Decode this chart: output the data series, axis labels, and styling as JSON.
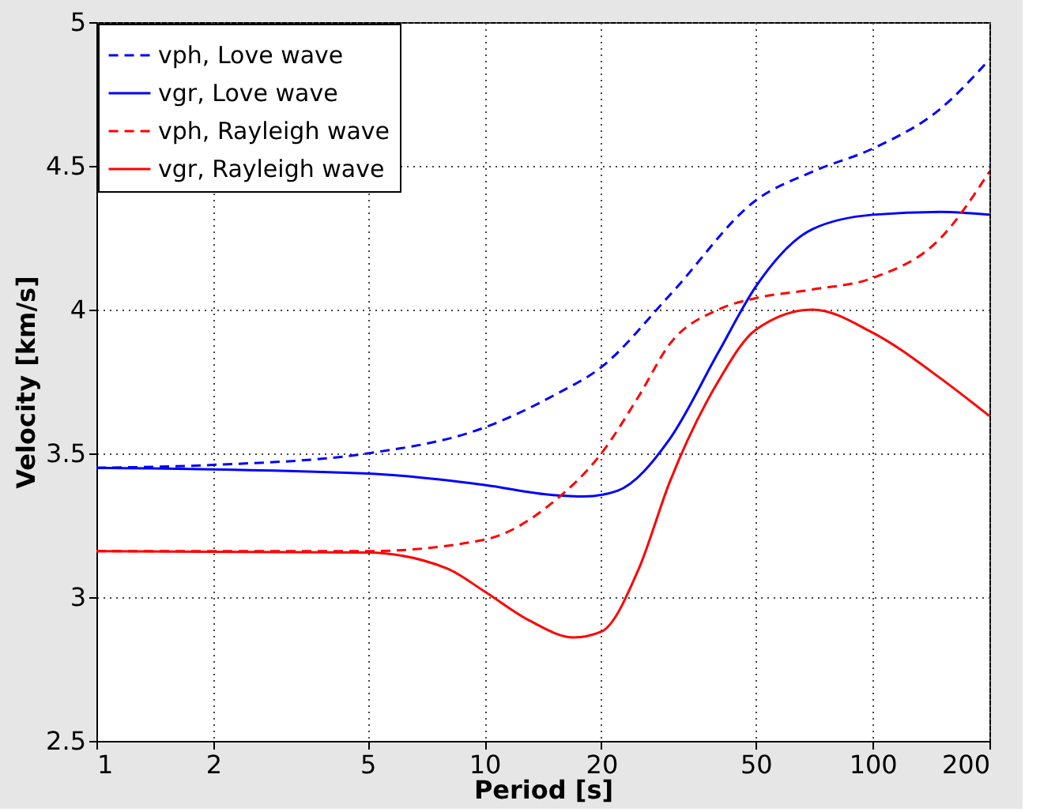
{
  "chart_data": {
    "type": "line",
    "xlabel": "Period [s]",
    "ylabel": "Velocity [km/s]",
    "log": "x",
    "xlim": [
      1,
      200
    ],
    "xticks": [
      1,
      2,
      5,
      10,
      20,
      50,
      100,
      200
    ],
    "ylim": [
      2.5,
      5
    ],
    "yticks": [
      2.5,
      3,
      3.5,
      4,
      4.5,
      5
    ],
    "grid": true,
    "legend": "top left",
    "marker": "none",
    "series": [
      {
        "name": "vph, Love wave",
        "color": "#0000ff",
        "line_style": "dashed",
        "x": [
          1,
          2,
          5,
          10,
          15,
          20,
          30,
          50,
          70,
          100,
          150,
          200
        ],
        "values": [
          3.45,
          3.46,
          3.5,
          3.59,
          3.7,
          3.8,
          4.05,
          4.38,
          4.48,
          4.56,
          4.7,
          4.87
        ]
      },
      {
        "name": "vgr, Love wave",
        "color": "#0000ff",
        "line_style": "solid",
        "x": [
          1,
          5,
          10,
          15,
          18,
          22,
          30,
          40,
          50,
          70,
          100,
          150,
          200
        ],
        "values": [
          3.45,
          3.43,
          3.39,
          3.355,
          3.35,
          3.37,
          3.55,
          3.85,
          4.08,
          4.28,
          4.33,
          4.34,
          4.33
        ]
      },
      {
        "name": "vph, Rayleigh wave",
        "color": "#ff0000",
        "line_style": "dashed",
        "x": [
          1,
          5,
          10,
          15,
          20,
          25,
          30,
          40,
          50,
          70,
          100,
          150,
          200
        ],
        "values": [
          3.16,
          3.16,
          3.2,
          3.33,
          3.5,
          3.7,
          3.88,
          4.0,
          4.04,
          4.07,
          4.11,
          4.25,
          4.48
        ]
      },
      {
        "name": "vgr, Rayleigh wave",
        "color": "#ff0000",
        "line_style": "solid",
        "x": [
          1,
          5,
          8,
          10,
          13,
          17,
          20,
          25,
          30,
          40,
          50,
          70,
          100,
          150,
          200
        ],
        "values": [
          3.16,
          3.155,
          3.1,
          3.02,
          2.92,
          2.86,
          2.88,
          3.1,
          3.4,
          3.75,
          3.93,
          4.0,
          3.92,
          3.76,
          3.63
        ]
      }
    ]
  }
}
